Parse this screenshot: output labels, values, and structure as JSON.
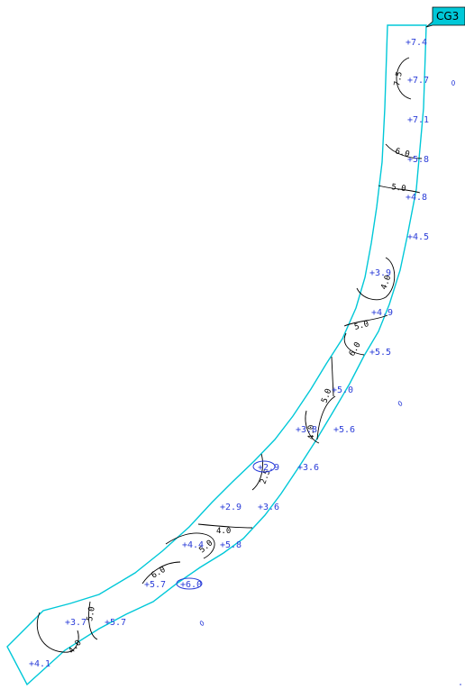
{
  "section_tag": "CG3",
  "depth_soundings": [
    {
      "id": "d1",
      "label": "7.4"
    },
    {
      "id": "d2",
      "label": "7.7"
    },
    {
      "id": "d3",
      "label": "7.1"
    },
    {
      "id": "d4",
      "label": "5.8"
    },
    {
      "id": "d5",
      "label": "4.8"
    },
    {
      "id": "d6",
      "label": "4.5"
    },
    {
      "id": "d7",
      "label": "3.9"
    },
    {
      "id": "d8",
      "label": "4.9"
    },
    {
      "id": "d9",
      "label": "5.5"
    },
    {
      "id": "d10",
      "label": "5.0"
    },
    {
      "id": "d11",
      "label": "3.8"
    },
    {
      "id": "d12",
      "label": "5.6"
    },
    {
      "id": "d13",
      "label": "2.9"
    },
    {
      "id": "d14",
      "label": "3.6"
    },
    {
      "id": "d15",
      "label": "2.9"
    },
    {
      "id": "d16",
      "label": "3.6"
    },
    {
      "id": "d17",
      "label": "4.4"
    },
    {
      "id": "d18",
      "label": "5.8"
    },
    {
      "id": "d19",
      "label": "5.7"
    },
    {
      "id": "d20",
      "label": "6.0"
    },
    {
      "id": "d21",
      "label": "3.7"
    },
    {
      "id": "d22",
      "label": "5.7"
    },
    {
      "id": "d23",
      "label": "4.1"
    }
  ],
  "contour_labels": [
    {
      "id": "c1",
      "label": "7.5"
    },
    {
      "id": "c2",
      "label": "6.0"
    },
    {
      "id": "c3",
      "label": "5.0"
    },
    {
      "id": "c4",
      "label": "4.0"
    },
    {
      "id": "c5",
      "label": "5.0"
    },
    {
      "id": "c6",
      "label": "6.0"
    },
    {
      "id": "c7",
      "label": "5.0"
    },
    {
      "id": "c8",
      "label": "4.0"
    },
    {
      "id": "c9",
      "label": "2.5"
    },
    {
      "id": "c10",
      "label": "4.0"
    },
    {
      "id": "c11",
      "label": "5.0"
    },
    {
      "id": "c12",
      "label": "6.0"
    },
    {
      "id": "c13",
      "label": "5.0"
    },
    {
      "id": "c14",
      "label": "4.0"
    }
  ],
  "colors": {
    "outline": "#00c8d8",
    "sounding_text": "#2a3cd8",
    "contour": "#000000"
  }
}
